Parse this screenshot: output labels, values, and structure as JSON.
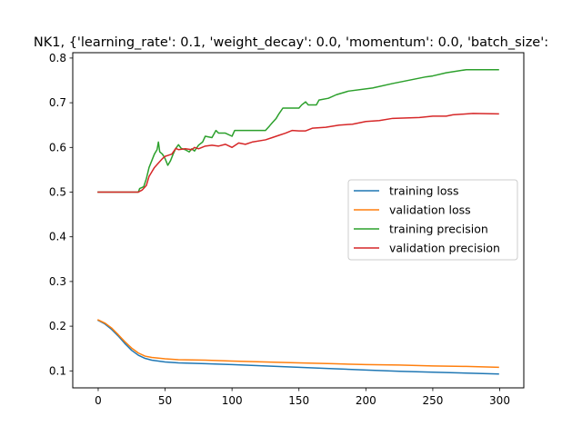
{
  "chart_data": {
    "type": "line",
    "title": "NK1, {'learning_rate': 0.1, 'weight_decay': 0.0, 'momentum': 0.0, 'batch_size':",
    "xlabel": "",
    "ylabel": "",
    "xlim": [
      -19,
      318
    ],
    "ylim": [
      0.062,
      0.812
    ],
    "xticks": [
      0,
      50,
      100,
      150,
      200,
      250,
      300
    ],
    "yticks": [
      0.1,
      0.2,
      0.3,
      0.4,
      0.5,
      0.6,
      0.7,
      0.8
    ],
    "xtick_labels": [
      "0",
      "50",
      "100",
      "150",
      "200",
      "250",
      "300"
    ],
    "ytick_labels": [
      "0.1",
      "0.2",
      "0.3",
      "0.4",
      "0.5",
      "0.6",
      "0.7",
      "0.8"
    ],
    "grid": false,
    "legend_position": "center-right",
    "series": [
      {
        "name": "training loss",
        "color": "#1f77b4",
        "points": [
          [
            0,
            0.213
          ],
          [
            5,
            0.205
          ],
          [
            10,
            0.193
          ],
          [
            15,
            0.178
          ],
          [
            20,
            0.161
          ],
          [
            25,
            0.146
          ],
          [
            30,
            0.135
          ],
          [
            35,
            0.128
          ],
          [
            40,
            0.124
          ],
          [
            50,
            0.12
          ],
          [
            60,
            0.118
          ],
          [
            80,
            0.116
          ],
          [
            100,
            0.114
          ],
          [
            125,
            0.111
          ],
          [
            150,
            0.108
          ],
          [
            175,
            0.105
          ],
          [
            200,
            0.102
          ],
          [
            225,
            0.099
          ],
          [
            250,
            0.097
          ],
          [
            275,
            0.095
          ],
          [
            299,
            0.093
          ]
        ]
      },
      {
        "name": "validation loss",
        "color": "#ff7f0e",
        "points": [
          [
            0,
            0.214
          ],
          [
            5,
            0.207
          ],
          [
            10,
            0.196
          ],
          [
            15,
            0.181
          ],
          [
            20,
            0.165
          ],
          [
            25,
            0.151
          ],
          [
            30,
            0.14
          ],
          [
            35,
            0.133
          ],
          [
            40,
            0.13
          ],
          [
            50,
            0.127
          ],
          [
            60,
            0.125
          ],
          [
            80,
            0.124
          ],
          [
            100,
            0.122
          ],
          [
            125,
            0.12
          ],
          [
            150,
            0.118
          ],
          [
            175,
            0.116
          ],
          [
            200,
            0.114
          ],
          [
            225,
            0.113
          ],
          [
            250,
            0.111
          ],
          [
            275,
            0.11
          ],
          [
            299,
            0.108
          ]
        ]
      },
      {
        "name": "training precision",
        "color": "#2ca02c",
        "points": [
          [
            0,
            0.5
          ],
          [
            30,
            0.5
          ],
          [
            31,
            0.508
          ],
          [
            34,
            0.512
          ],
          [
            36,
            0.53
          ],
          [
            38,
            0.555
          ],
          [
            40,
            0.57
          ],
          [
            42,
            0.585
          ],
          [
            44,
            0.595
          ],
          [
            45,
            0.612
          ],
          [
            46,
            0.59
          ],
          [
            48,
            0.585
          ],
          [
            50,
            0.575
          ],
          [
            52,
            0.56
          ],
          [
            54,
            0.57
          ],
          [
            56,
            0.585
          ],
          [
            58,
            0.598
          ],
          [
            60,
            0.606
          ],
          [
            62,
            0.598
          ],
          [
            65,
            0.595
          ],
          [
            68,
            0.59
          ],
          [
            70,
            0.597
          ],
          [
            72,
            0.592
          ],
          [
            75,
            0.605
          ],
          [
            78,
            0.612
          ],
          [
            80,
            0.625
          ],
          [
            85,
            0.622
          ],
          [
            88,
            0.638
          ],
          [
            90,
            0.632
          ],
          [
            95,
            0.632
          ],
          [
            100,
            0.625
          ],
          [
            102,
            0.638
          ],
          [
            125,
            0.638
          ],
          [
            128,
            0.648
          ],
          [
            130,
            0.655
          ],
          [
            133,
            0.665
          ],
          [
            135,
            0.675
          ],
          [
            138,
            0.688
          ],
          [
            150,
            0.688
          ],
          [
            152,
            0.695
          ],
          [
            155,
            0.702
          ],
          [
            157,
            0.695
          ],
          [
            163,
            0.695
          ],
          [
            165,
            0.706
          ],
          [
            172,
            0.71
          ],
          [
            178,
            0.718
          ],
          [
            187,
            0.726
          ],
          [
            205,
            0.733
          ],
          [
            220,
            0.743
          ],
          [
            245,
            0.758
          ],
          [
            250,
            0.76
          ],
          [
            260,
            0.767
          ],
          [
            275,
            0.774
          ],
          [
            299,
            0.774
          ]
        ]
      },
      {
        "name": "validation precision",
        "color": "#d62728",
        "points": [
          [
            0,
            0.5
          ],
          [
            30,
            0.5
          ],
          [
            33,
            0.505
          ],
          [
            36,
            0.515
          ],
          [
            38,
            0.535
          ],
          [
            40,
            0.545
          ],
          [
            42,
            0.555
          ],
          [
            45,
            0.565
          ],
          [
            48,
            0.575
          ],
          [
            50,
            0.58
          ],
          [
            52,
            0.582
          ],
          [
            55,
            0.585
          ],
          [
            58,
            0.598
          ],
          [
            60,
            0.595
          ],
          [
            65,
            0.597
          ],
          [
            70,
            0.595
          ],
          [
            72,
            0.6
          ],
          [
            75,
            0.597
          ],
          [
            80,
            0.603
          ],
          [
            85,
            0.605
          ],
          [
            90,
            0.603
          ],
          [
            95,
            0.607
          ],
          [
            100,
            0.6
          ],
          [
            105,
            0.61
          ],
          [
            110,
            0.607
          ],
          [
            115,
            0.612
          ],
          [
            125,
            0.617
          ],
          [
            130,
            0.622
          ],
          [
            135,
            0.627
          ],
          [
            140,
            0.632
          ],
          [
            145,
            0.638
          ],
          [
            150,
            0.637
          ],
          [
            155,
            0.637
          ],
          [
            160,
            0.643
          ],
          [
            170,
            0.645
          ],
          [
            180,
            0.65
          ],
          [
            190,
            0.652
          ],
          [
            200,
            0.658
          ],
          [
            210,
            0.66
          ],
          [
            220,
            0.665
          ],
          [
            240,
            0.667
          ],
          [
            250,
            0.67
          ],
          [
            260,
            0.67
          ],
          [
            265,
            0.673
          ],
          [
            280,
            0.676
          ],
          [
            299,
            0.675
          ]
        ]
      }
    ]
  }
}
